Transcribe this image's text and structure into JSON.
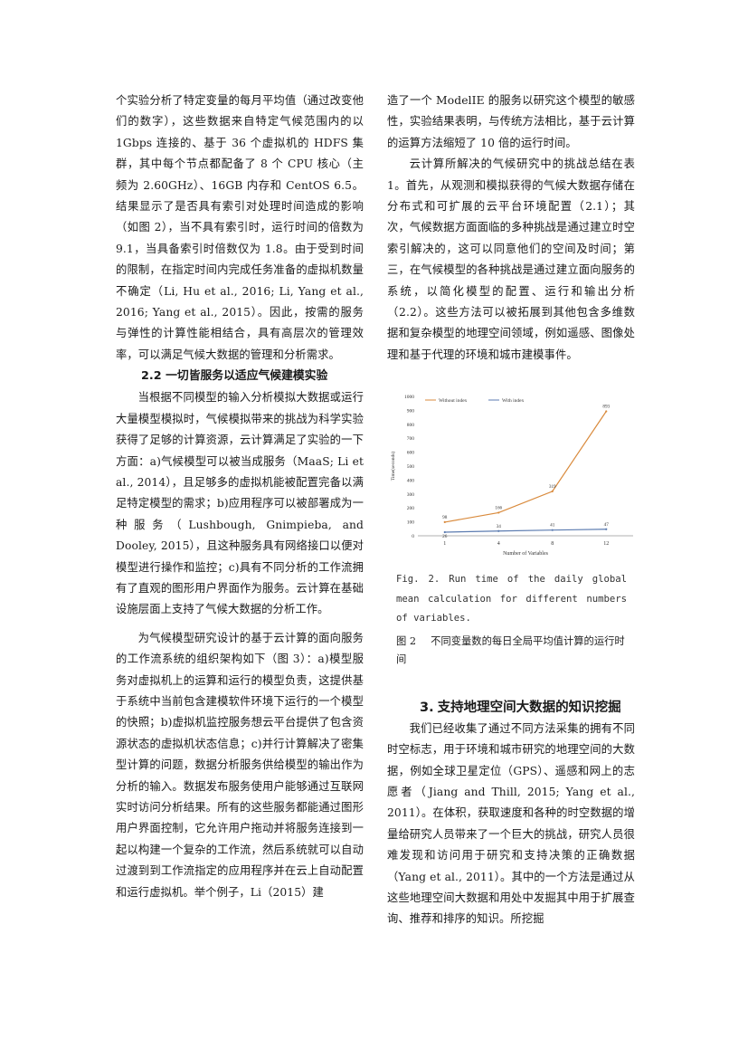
{
  "left": {
    "p1": "个实验分析了特定变量的每月平均值（通过改变他们的数字），这些数据来自特定气候范围内的以 1Gbps 连接的、基于 36 个虚拟机的 HDFS 集群，其中每个节点都配备了 8 个 CPU 核心（主频为 2.60GHz）、16GB 内存和 CentOS 6.5。结果显示了是否具有索引对处理时间造成的影响（如图 2），当不具有索引时，运行时间的倍数为 9.1，当具备索引时倍数仅为 1.8。由于受到时间的限制，在指定时间内完成任务准备的虚拟机数量不确定（Li, Hu et al., 2016; Li, Yang et al., 2016; Yang et al., 2015）。因此，按需的服务与弹性的计算性能相结合，具有高层次的管理效率，可以满足气候大数据的管理和分析需求。",
    "h22": "2.2 一切皆服务以适应气候建模实验",
    "p2": "当根据不同模型的输入分析模拟大数据或运行大量模型模拟时，气候模拟带来的挑战为科学实验获得了足够的计算资源，云计算满足了实验的一下方面：a)气候模型可以被当成服务（MaaS; Li et al., 2014），且足够多的虚拟机能被配置完备以满足特定模型的需求；b)应用程序可以被部署成为一种服务（Lushbough, Gnimpieba, and Dooley, 2015），且这种服务具有网络接口以便对模型进行操作和监控；c)具有不同分析的工作流拥有了直观的图形用户界面作为服务。云计算在基础设施层面上支持了气候大数据的分析工作。",
    "p3": "为气候模型研究设计的基于云计算的面向服务的工作流系统的组织架构如下（图 3）：a)模型服务对虚拟机上的运算和运行的模型负责，这提供基于系统中当前包含建模软件环境下运行的一个模型的快照；b)虚拟机监控服务想云平台提供了包含资源状态的虚拟机状态信息；c)并行计算解决了密集型计算的问题，数据分析服务供给模型的输出作为分析的输入。数据发布服务使用户能够通过互联网实时访问分析结果。所有的这些服务都能通过图形用户界面控制，它允许用户拖动并将服务连接到一起以构建一个复杂的工作流，然后系统就可以自动过渡到到工作流指定的应用程序并在云上自动配置和运行虚拟机。举个例子，Li（2015）建"
  },
  "right": {
    "p1": "造了一个 ModelIE 的服务以研究这个模型的敏感性，实验结果表明，与传统方法相比，基于云计算的运算方法缩短了 10 倍的运行时间。",
    "p2": "云计算所解决的气候研究中的挑战总结在表 1。首先，从观测和模拟获得的气候大数据存储在分布式和可扩展的云平台环境配置（2.1）；其次，气候数据方面面临的多种挑战是通过建立时空索引解决的，这可以同意他们的空间及时间；第三，在气候模型的各种挑战是通过建立面向服务的系统，以简化模型的配置、运行和输出分析（2.2）。这些方法可以被拓展到其他包含多维数据和复杂模型的地理空间领域，例如遥感、图像处理和基于代理的环境和城市建模事件。",
    "fig_caption_en": "Fig. 2. Run time of the daily global mean calculation for different numbers of variables.",
    "fig_caption_zh_label": "图 2",
    "fig_caption_zh": "不同变量数的每日全局平均值计算的运行时间",
    "section_num": "3.",
    "section_title": "支持地理空间大数据的知识挖掘",
    "p3": "我们已经收集了通过不同方法采集的拥有不同时空标志，用于环境和城市研究的地理空间的大数据，例如全球卫星定位（GPS）、遥感和网上的志愿者（Jiang and Thill, 2015; Yang et al., 2011）。在体积，获取速度和各种的时空数据的增量给研究人员带来了一个巨大的挑战，研究人员很难发现和访问用于研究和支持决策的正确数据（Yang et al., 2011）。其中的一个方法是通过从这些地理空间大数据和用处中发掘其中用于扩展查询、推荐和排序的知识。所挖掘"
  },
  "chart_data": {
    "type": "line",
    "categories": [
      "1",
      "4",
      "8",
      "12"
    ],
    "series": [
      {
        "name": "Without index",
        "values": [
          98,
          166,
          319,
          893
        ],
        "color": "#d98a3c"
      },
      {
        "name": "With index",
        "values": [
          26,
          34,
          41,
          47
        ],
        "color": "#5b7bb0"
      }
    ],
    "xlabel": "Number of Variables",
    "ylabel": "Time(seconds)",
    "ylim": [
      0,
      1000
    ],
    "yticks": [
      "0",
      "100",
      "200",
      "300",
      "400",
      "500",
      "600",
      "700",
      "800",
      "900",
      "1000"
    ],
    "legend": "top-left",
    "grid": false
  }
}
